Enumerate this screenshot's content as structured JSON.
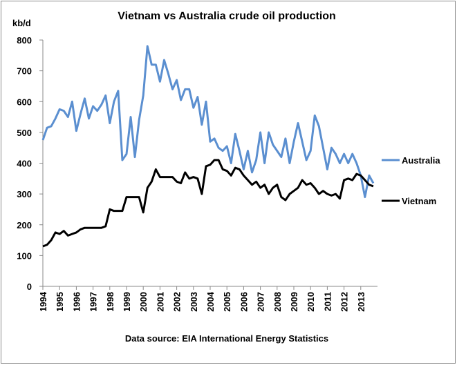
{
  "chart_data": {
    "type": "line",
    "title": "Vietnam vs Australia crude oil production",
    "y_label": "kb/d",
    "source": "Data source: EIA International Energy Statistics",
    "xlim": [
      1994,
      2014
    ],
    "xticks": [
      1994,
      1995,
      1996,
      1997,
      1998,
      1999,
      2000,
      2001,
      2002,
      2003,
      2004,
      2005,
      2006,
      2007,
      2008,
      2009,
      2010,
      2011,
      2012,
      2013
    ],
    "ylim": [
      0,
      800
    ],
    "yticks": [
      0,
      100,
      200,
      300,
      400,
      500,
      600,
      700,
      800
    ],
    "x": [
      1994,
      1994.25,
      1994.5,
      1994.75,
      1995,
      1995.25,
      1995.5,
      1995.75,
      1996,
      1996.25,
      1996.5,
      1996.75,
      1997,
      1997.25,
      1997.5,
      1997.75,
      1998,
      1998.25,
      1998.5,
      1998.75,
      1999,
      1999.25,
      1999.5,
      1999.75,
      2000,
      2000.25,
      2000.5,
      2000.75,
      2001,
      2001.25,
      2001.5,
      2001.75,
      2002,
      2002.25,
      2002.5,
      2002.75,
      2003,
      2003.25,
      2003.5,
      2003.75,
      2004,
      2004.25,
      2004.5,
      2004.75,
      2005,
      2005.25,
      2005.5,
      2005.75,
      2006,
      2006.25,
      2006.5,
      2006.75,
      2007,
      2007.25,
      2007.5,
      2007.75,
      2008,
      2008.25,
      2008.5,
      2008.75,
      2009,
      2009.25,
      2009.5,
      2009.75,
      2010,
      2010.25,
      2010.5,
      2010.75,
      2011,
      2011.25,
      2011.5,
      2011.75,
      2012,
      2012.25,
      2012.5,
      2012.75,
      2013,
      2013.25,
      2013.5,
      2013.75
    ],
    "series": [
      {
        "name": "Australia",
        "color": "#5b8fd0",
        "values": [
          475,
          515,
          520,
          545,
          575,
          570,
          550,
          600,
          505,
          560,
          610,
          545,
          585,
          570,
          590,
          620,
          530,
          600,
          635,
          410,
          430,
          550,
          420,
          540,
          620,
          780,
          720,
          720,
          665,
          735,
          690,
          640,
          670,
          605,
          640,
          640,
          580,
          615,
          525,
          600,
          470,
          480,
          450,
          440,
          455,
          400,
          495,
          440,
          380,
          440,
          370,
          410,
          500,
          400,
          500,
          460,
          440,
          420,
          480,
          400,
          470,
          530,
          470,
          410,
          440,
          555,
          520,
          450,
          380,
          450,
          430,
          400,
          430,
          400,
          430,
          400,
          360,
          290,
          360,
          335
        ]
      },
      {
        "name": "Vietnam",
        "color": "#000000",
        "values": [
          130,
          135,
          150,
          175,
          170,
          180,
          165,
          170,
          175,
          185,
          190,
          190,
          190,
          190,
          190,
          195,
          250,
          245,
          245,
          245,
          290,
          290,
          290,
          290,
          240,
          320,
          340,
          380,
          355,
          355,
          355,
          355,
          340,
          335,
          370,
          350,
          355,
          350,
          300,
          390,
          395,
          410,
          410,
          380,
          375,
          360,
          385,
          380,
          360,
          345,
          330,
          340,
          320,
          330,
          300,
          320,
          330,
          290,
          280,
          300,
          310,
          320,
          345,
          330,
          335,
          320,
          300,
          310,
          300,
          295,
          300,
          285,
          345,
          350,
          345,
          365,
          360,
          345,
          330,
          325
        ]
      }
    ]
  }
}
